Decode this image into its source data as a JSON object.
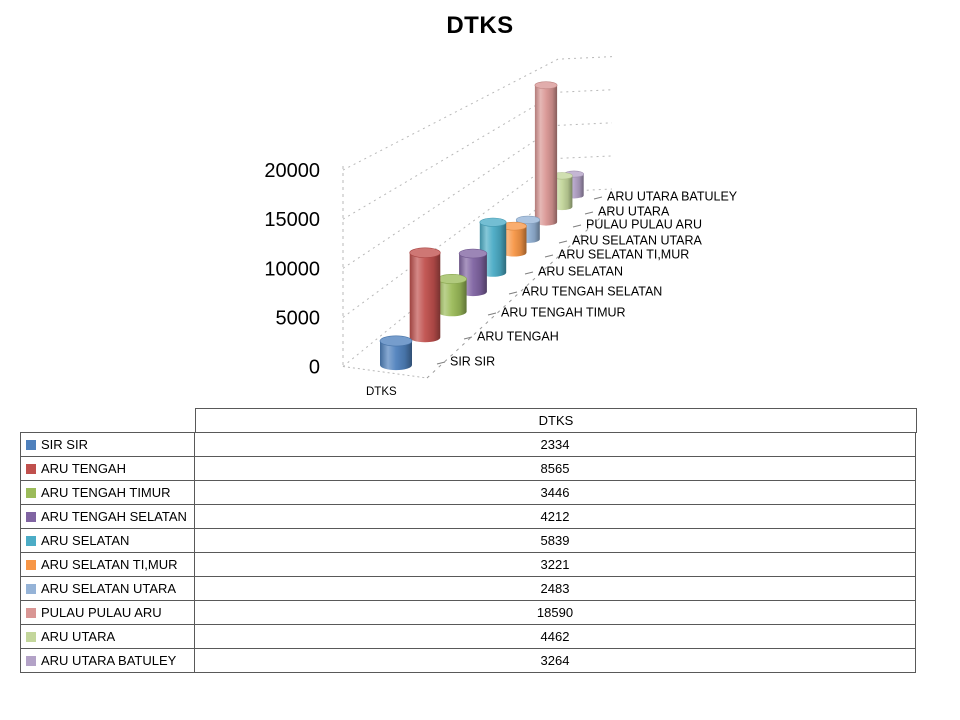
{
  "chart_data": {
    "type": "bar",
    "subtype": "3d-cylinder",
    "title": "DTKS",
    "xlabel": "DTKS",
    "ylabel": "",
    "categories": [
      "SIR SIR",
      "ARU TENGAH",
      "ARU TENGAH TIMUR",
      "ARU TENGAH SELATAN",
      "ARU SELATAN",
      "ARU SELATAN TI,MUR",
      "ARU SELATAN UTARA",
      "PULAU PULAU ARU",
      "ARU UTARA",
      "ARU UTARA BATULEY"
    ],
    "series": [
      {
        "name": "DTKS",
        "values": [
          2334,
          8565,
          3446,
          4212,
          5839,
          3221,
          2483,
          18590,
          4462,
          3264
        ]
      }
    ],
    "series_colors": [
      "#4F81BD",
      "#C0504D",
      "#9BBB59",
      "#8064A2",
      "#4BACC6",
      "#F79646",
      "#95B3D7",
      "#D99694",
      "#C3D69B",
      "#B3A2C7"
    ],
    "ylim": [
      0,
      20000
    ],
    "y_ticks": [
      0,
      5000,
      10000,
      15000,
      20000
    ],
    "grid": "dashed-3d-walls",
    "legend_position": "none"
  },
  "table": {
    "header_label": "DTKS",
    "rows": [
      {
        "label": "SIR SIR",
        "value": "2334",
        "color": "#4F81BD"
      },
      {
        "label": "ARU TENGAH",
        "value": "8565",
        "color": "#C0504D"
      },
      {
        "label": "ARU TENGAH TIMUR",
        "value": "3446",
        "color": "#9BBB59"
      },
      {
        "label": "ARU TENGAH SELATAN",
        "value": "4212",
        "color": "#8064A2"
      },
      {
        "label": "ARU SELATAN",
        "value": "5839",
        "color": "#4BACC6"
      },
      {
        "label": "ARU SELATAN TI,MUR",
        "value": "3221",
        "color": "#F79646"
      },
      {
        "label": "ARU SELATAN UTARA",
        "value": "2483",
        "color": "#95B3D7"
      },
      {
        "label": "PULAU PULAU ARU",
        "value": "18590",
        "color": "#D99694"
      },
      {
        "label": "ARU UTARA",
        "value": "4462",
        "color": "#C3D69B"
      },
      {
        "label": "ARU UTARA BATULEY",
        "value": "3264",
        "color": "#B3A2C7"
      }
    ]
  }
}
